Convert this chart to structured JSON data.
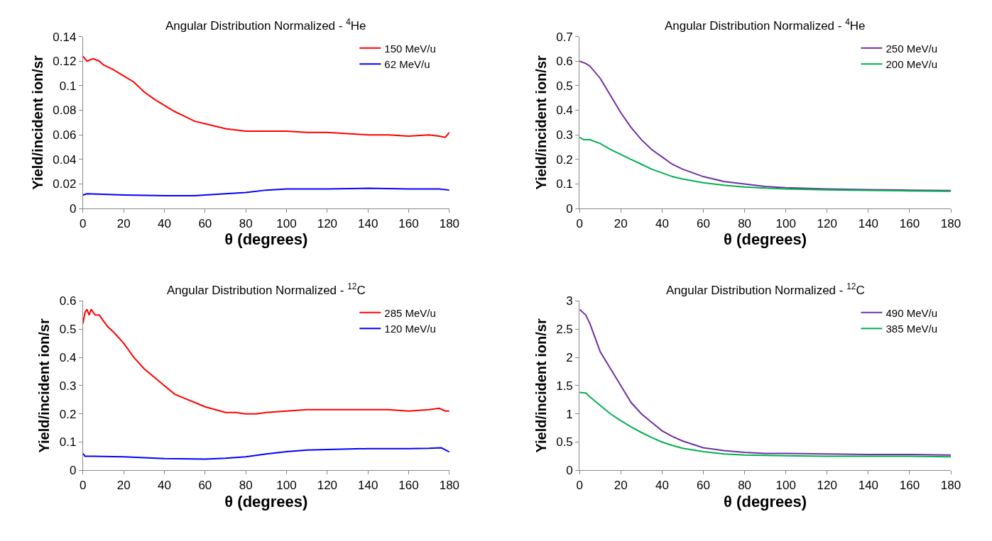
{
  "chart_data": [
    {
      "type": "line",
      "title": "Angular Distribution Normalized - $^{4}$He",
      "xlabel": "θ (degrees)",
      "ylabel": "Yield/incident ion/sr",
      "xlim": [
        0,
        180
      ],
      "xticks": [
        0,
        20,
        40,
        60,
        80,
        100,
        120,
        140,
        160,
        180
      ],
      "ylim": [
        0,
        0.14
      ],
      "yticks": [
        0,
        0.02,
        0.04,
        0.06,
        0.08,
        0.1,
        0.12,
        0.14
      ],
      "legend": "top right",
      "marker": "none",
      "line_style": "solid",
      "series": [
        {
          "name": "150 MeV/u",
          "color": "#ff0000",
          "x": [
            0,
            2,
            5,
            8,
            10,
            15,
            20,
            25,
            30,
            35,
            40,
            45,
            50,
            55,
            60,
            65,
            70,
            75,
            80,
            90,
            100,
            110,
            120,
            130,
            140,
            150,
            160,
            170,
            175,
            178,
            180
          ],
          "values": [
            0.124,
            0.12,
            0.122,
            0.12,
            0.117,
            0.113,
            0.108,
            0.103,
            0.095,
            0.089,
            0.084,
            0.079,
            0.075,
            0.071,
            0.069,
            0.067,
            0.065,
            0.064,
            0.063,
            0.063,
            0.063,
            0.062,
            0.062,
            0.061,
            0.06,
            0.06,
            0.059,
            0.06,
            0.059,
            0.058,
            0.062
          ]
        },
        {
          "name": "62 MeV/u",
          "color": "#0000ff",
          "x": [
            0,
            2,
            20,
            40,
            55,
            60,
            70,
            80,
            90,
            100,
            120,
            140,
            160,
            175,
            180
          ],
          "values": [
            0.011,
            0.012,
            0.011,
            0.0105,
            0.0105,
            0.011,
            0.012,
            0.013,
            0.015,
            0.016,
            0.016,
            0.0165,
            0.016,
            0.016,
            0.015
          ]
        }
      ]
    },
    {
      "type": "line",
      "title": "Angular Distribution Normalized - $^{4}$He",
      "xlabel": "θ (degrees)",
      "ylabel": "Yield/incident ion/sr",
      "xlim": [
        0,
        180
      ],
      "xticks": [
        0,
        20,
        40,
        60,
        80,
        100,
        120,
        140,
        160,
        180
      ],
      "ylim": [
        0,
        0.7
      ],
      "yticks": [
        0,
        0.1,
        0.2,
        0.3,
        0.4,
        0.5,
        0.6,
        0.7
      ],
      "legend": "top right",
      "marker": "none",
      "line_style": "solid",
      "series": [
        {
          "name": "250 MeV/u",
          "color": "#7030a0",
          "x": [
            0,
            3,
            5,
            10,
            15,
            20,
            25,
            30,
            35,
            40,
            45,
            50,
            55,
            60,
            70,
            80,
            90,
            100,
            120,
            140,
            160,
            180
          ],
          "values": [
            0.6,
            0.59,
            0.58,
            0.53,
            0.46,
            0.39,
            0.33,
            0.28,
            0.24,
            0.21,
            0.18,
            0.16,
            0.145,
            0.13,
            0.11,
            0.1,
            0.09,
            0.085,
            0.08,
            0.077,
            0.075,
            0.073
          ]
        },
        {
          "name": "200 MeV/u",
          "color": "#00b050",
          "x": [
            0,
            2,
            5,
            10,
            15,
            20,
            25,
            30,
            35,
            40,
            45,
            50,
            60,
            70,
            80,
            90,
            100,
            120,
            140,
            160,
            180
          ],
          "values": [
            0.29,
            0.28,
            0.28,
            0.265,
            0.24,
            0.22,
            0.2,
            0.18,
            0.16,
            0.145,
            0.13,
            0.12,
            0.105,
            0.095,
            0.088,
            0.083,
            0.08,
            0.076,
            0.074,
            0.072,
            0.07
          ]
        }
      ]
    },
    {
      "type": "line",
      "title": "Angular Distribution Normalized - $^{12}$C",
      "xlabel": "θ (degrees)",
      "ylabel": "Yield/incident ion/sr",
      "xlim": [
        0,
        180
      ],
      "xticks": [
        0,
        20,
        40,
        60,
        80,
        100,
        120,
        140,
        160,
        180
      ],
      "ylim": [
        0,
        0.6
      ],
      "yticks": [
        0,
        0.1,
        0.2,
        0.3,
        0.4,
        0.5,
        0.6
      ],
      "legend": "top right",
      "marker": "none",
      "line_style": "solid",
      "series": [
        {
          "name": "285 MeV/u",
          "color": "#ff0000",
          "x": [
            0,
            1,
            2,
            3,
            4,
            6,
            8,
            10,
            12,
            15,
            20,
            25,
            30,
            35,
            40,
            45,
            50,
            55,
            60,
            65,
            70,
            75,
            80,
            85,
            90,
            100,
            110,
            120,
            130,
            140,
            150,
            160,
            170,
            175,
            178,
            180
          ],
          "values": [
            0.52,
            0.56,
            0.57,
            0.55,
            0.57,
            0.55,
            0.55,
            0.53,
            0.51,
            0.49,
            0.45,
            0.4,
            0.36,
            0.33,
            0.3,
            0.27,
            0.255,
            0.24,
            0.225,
            0.215,
            0.205,
            0.205,
            0.2,
            0.2,
            0.205,
            0.21,
            0.215,
            0.215,
            0.215,
            0.215,
            0.215,
            0.21,
            0.215,
            0.22,
            0.21,
            0.21
          ]
        },
        {
          "name": "120 MeV/u",
          "color": "#0000ff",
          "x": [
            0,
            1,
            5,
            20,
            40,
            60,
            70,
            80,
            90,
            100,
            110,
            120,
            140,
            160,
            170,
            176,
            180
          ],
          "values": [
            0.06,
            0.05,
            0.05,
            0.048,
            0.042,
            0.04,
            0.043,
            0.048,
            0.058,
            0.066,
            0.072,
            0.074,
            0.077,
            0.077,
            0.078,
            0.08,
            0.065
          ]
        }
      ]
    },
    {
      "type": "line",
      "title": "Angular Distribution Normalized - $^{12}$C",
      "xlabel": "θ (degrees)",
      "ylabel": "Yield/incident ion/sr",
      "xlim": [
        0,
        180
      ],
      "xticks": [
        0,
        20,
        40,
        60,
        80,
        100,
        120,
        140,
        160,
        180
      ],
      "ylim": [
        0,
        3
      ],
      "yticks": [
        0,
        0.5,
        1,
        1.5,
        2,
        2.5,
        3
      ],
      "legend": "top right",
      "marker": "none",
      "line_style": "solid",
      "series": [
        {
          "name": "490 MeV/u",
          "color": "#7030a0",
          "x": [
            0,
            3,
            5,
            8,
            10,
            15,
            20,
            25,
            30,
            35,
            40,
            45,
            50,
            55,
            60,
            70,
            80,
            90,
            100,
            120,
            140,
            160,
            180
          ],
          "values": [
            2.85,
            2.75,
            2.6,
            2.3,
            2.1,
            1.8,
            1.5,
            1.2,
            1.0,
            0.85,
            0.7,
            0.6,
            0.52,
            0.46,
            0.4,
            0.35,
            0.32,
            0.3,
            0.3,
            0.29,
            0.28,
            0.28,
            0.27
          ]
        },
        {
          "name": "385 MeV/u",
          "color": "#00b050",
          "x": [
            0,
            3,
            5,
            10,
            15,
            20,
            25,
            30,
            35,
            40,
            45,
            50,
            60,
            70,
            80,
            100,
            120,
            140,
            160,
            180
          ],
          "values": [
            1.38,
            1.37,
            1.3,
            1.15,
            1.0,
            0.88,
            0.77,
            0.67,
            0.58,
            0.5,
            0.44,
            0.39,
            0.33,
            0.29,
            0.27,
            0.26,
            0.25,
            0.25,
            0.25,
            0.24
          ]
        }
      ]
    }
  ]
}
